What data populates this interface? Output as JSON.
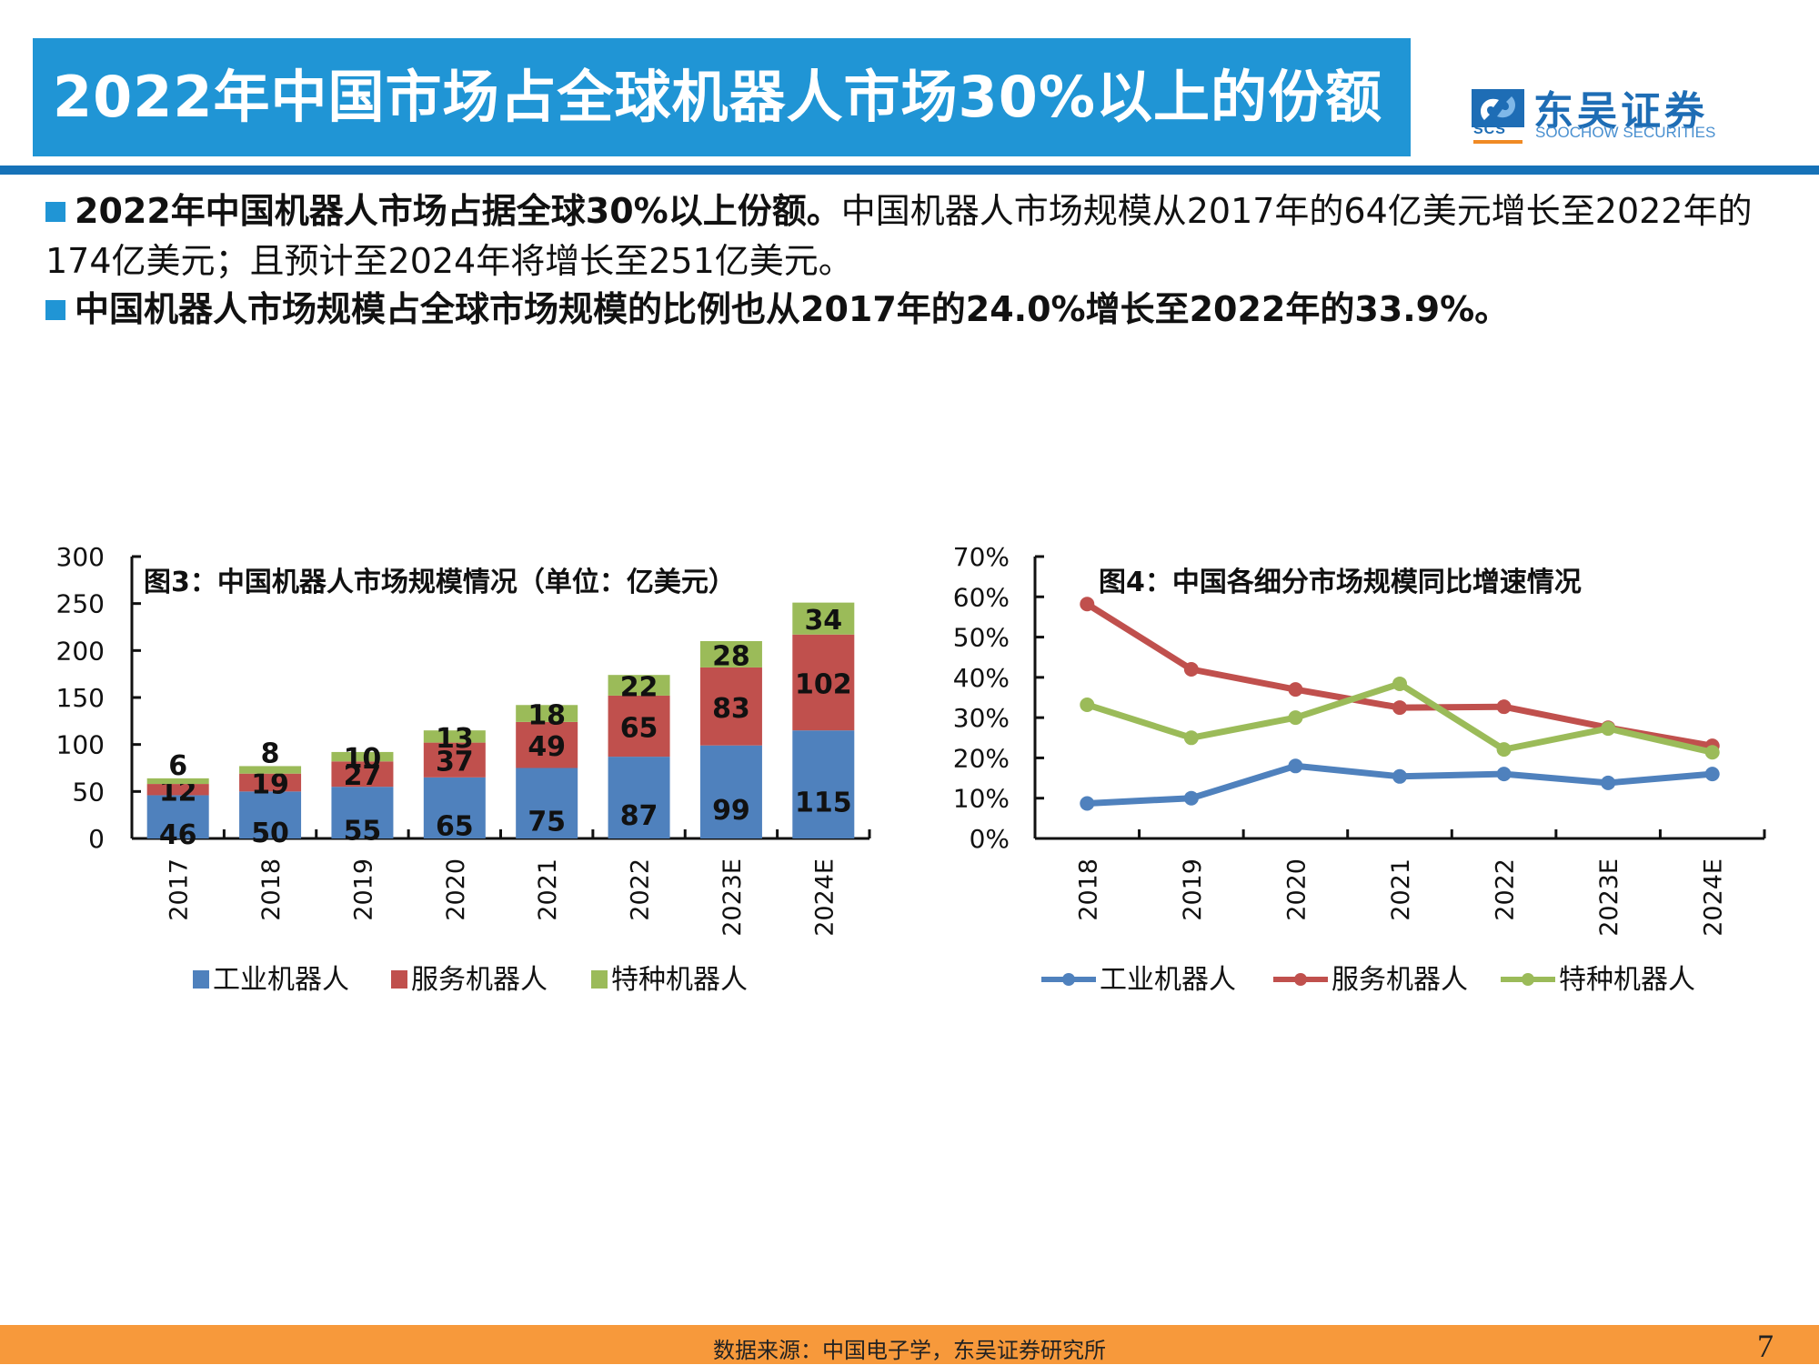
{
  "header": {
    "title": "2022年中国市场占全球机器人市场30%以上的份额",
    "logo": {
      "cn": "东吴证券",
      "en": "SOOCHOW SECURITIES",
      "abbr": "SCS"
    }
  },
  "bullets": [
    {
      "bold": "2022年中国机器人市场占据全球30%以上份额。",
      "normal": "中国机器人市场规模从2017年的64亿美元增长至2022年的174亿美元；且预计至2024年将增长至251亿美元。"
    },
    {
      "bold": "中国机器人市场规模占全球市场规模的比例也从2017年的24.0%增长至2022年的33.9%。",
      "normal": ""
    }
  ],
  "colors": {
    "accent": "#2095d5",
    "rule": "#1672b8",
    "footer": "#f7993b",
    "industrial": "#4f81bd",
    "service": "#c0504d",
    "special": "#9bbb59"
  },
  "chart_data": [
    {
      "type": "bar",
      "stacked": true,
      "title": "图3：中国机器人市场规模情况（单位：亿美元）",
      "categories": [
        "2017",
        "2018",
        "2019",
        "2020",
        "2021",
        "2022",
        "2023E",
        "2024E"
      ],
      "series": [
        {
          "name": "工业机器人",
          "values": [
            46,
            50,
            55,
            65,
            75,
            87,
            99,
            115
          ]
        },
        {
          "name": "服务机器人",
          "values": [
            12,
            19,
            27,
            37,
            49,
            65,
            83,
            102
          ]
        },
        {
          "name": "特种机器人",
          "values": [
            6,
            8,
            10,
            13,
            18,
            22,
            28,
            34
          ]
        }
      ],
      "ylim": [
        0,
        300
      ],
      "yticks": [
        "0",
        "50",
        "100",
        "150",
        "200",
        "250",
        "300"
      ],
      "xlabel": "",
      "ylabel": "",
      "legend": "bottom",
      "grid": false
    },
    {
      "type": "line",
      "title": "图4：中国各细分市场规模同比增速情况",
      "categories": [
        "2018",
        "2019",
        "2020",
        "2021",
        "2022",
        "2023E",
        "2024E"
      ],
      "series": [
        {
          "name": "工业机器人",
          "values": [
            8.7,
            10.0,
            18.0,
            15.4,
            16.0,
            13.8,
            16.0
          ]
        },
        {
          "name": "服务机器人",
          "values": [
            58.2,
            42.0,
            37.0,
            32.5,
            32.7,
            27.5,
            23.0
          ]
        },
        {
          "name": "特种机器人",
          "values": [
            33.2,
            25.0,
            30.0,
            38.4,
            22.1,
            27.3,
            21.4
          ]
        }
      ],
      "ylim": [
        0,
        70
      ],
      "yticks": [
        "0%",
        "10%",
        "20%",
        "30%",
        "40%",
        "50%",
        "60%",
        "70%"
      ],
      "xlabel": "",
      "ylabel": "",
      "legend": "bottom",
      "grid": false
    }
  ],
  "footer": {
    "source": "数据来源：中国电子学，东吴证券研究所",
    "page": "7"
  }
}
